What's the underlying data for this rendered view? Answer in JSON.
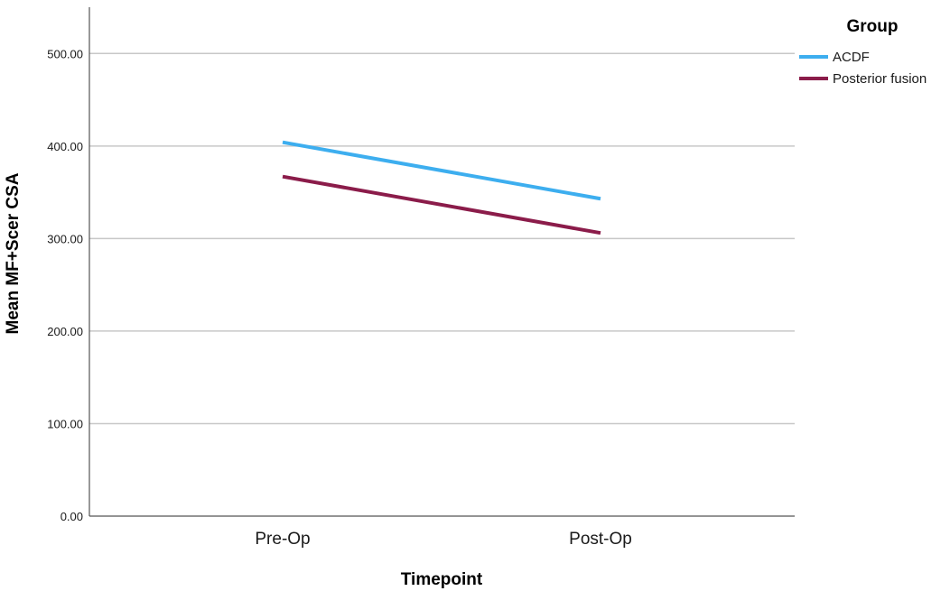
{
  "chart_data": {
    "type": "line",
    "title": "",
    "xlabel": "Timepoint",
    "ylabel": "Mean MF+Scer CSA",
    "categories": [
      "Pre-Op",
      "Post-Op"
    ],
    "ylim": [
      0,
      550
    ],
    "yticks": [
      0,
      100,
      200,
      300,
      400,
      500
    ],
    "ytick_labels": [
      "0.00",
      "100.00",
      "200.00",
      "300.00",
      "400.00",
      "500.00"
    ],
    "grid": true,
    "legend": {
      "title": "Group",
      "placement": "top-right"
    },
    "series": [
      {
        "name": "ACDF",
        "values": [
          404,
          343
        ],
        "color": "#3daeef"
      },
      {
        "name": "Posterior fusion",
        "values": [
          367,
          306
        ],
        "color": "#8b1c4a"
      }
    ]
  }
}
